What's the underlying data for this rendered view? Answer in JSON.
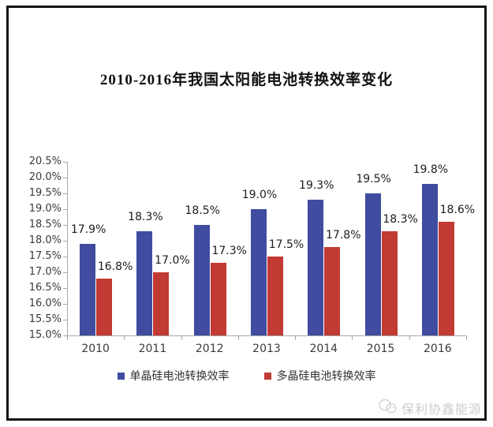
{
  "page": {
    "watermark": "保利协鑫能源"
  },
  "chart_data": {
    "type": "bar",
    "title": "2010-2016年我国太阳能电池转换效率变化",
    "categories": [
      "2010",
      "2011",
      "2012",
      "2013",
      "2014",
      "2015",
      "2016"
    ],
    "series": [
      {
        "name": "单晶硅电池转换效率",
        "color": "#3f4ca0",
        "values": [
          17.9,
          18.3,
          18.5,
          19.0,
          19.3,
          19.5,
          19.8
        ],
        "labels": [
          "17.9%",
          "18.3%",
          "18.5%",
          "19.0%",
          "19.3%",
          "19.5%",
          "19.8%"
        ]
      },
      {
        "name": "多晶硅电池转换效率",
        "color": "#c13a33",
        "values": [
          16.8,
          17.0,
          17.3,
          17.5,
          17.8,
          18.3,
          18.6
        ],
        "labels": [
          "16.8%",
          "17.0%",
          "17.3%",
          "17.5%",
          "17.8%",
          "18.3%",
          "18.6%"
        ]
      }
    ],
    "ylim": [
      15.0,
      20.5
    ],
    "ytick_step": 0.5,
    "ytick_labels": [
      "15.0%",
      "15.5%",
      "16.0%",
      "16.5%",
      "17.0%",
      "17.5%",
      "18.0%",
      "18.5%",
      "19.0%",
      "19.5%",
      "20.0%",
      "20.5%"
    ],
    "grid": false,
    "legend_position": "bottom",
    "axis_color": "#a8a8a8"
  }
}
